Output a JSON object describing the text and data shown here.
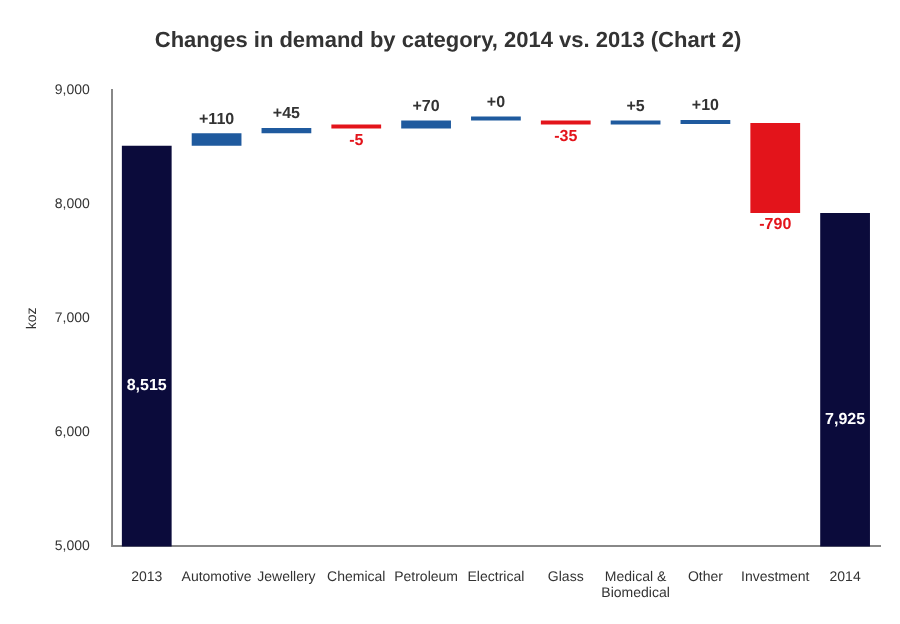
{
  "chart_data": {
    "type": "bar",
    "title": "Changes in demand by category, 2014 vs. 2013 (Chart 2)",
    "ylabel": "koz",
    "categories": [
      "2013",
      "Automotive",
      "Jewellery",
      "Chemical",
      "Petroleum",
      "Electrical",
      "Glass",
      "Medical & Biomedical",
      "Other",
      "Investment",
      "2014"
    ],
    "values": [
      8515,
      110,
      45,
      -5,
      70,
      0,
      -35,
      5,
      10,
      -790,
      7925
    ],
    "base": [
      null,
      8515,
      8625,
      8670,
      8665,
      8735,
      8735,
      8700,
      8705,
      8715,
      null
    ],
    "colors": [
      "#0b0b3b",
      "#1f5a9e",
      "#1f5a9e",
      "#e3141b",
      "#1f5a9e",
      "#1f5a9e",
      "#e3141b",
      "#1f5a9e",
      "#1f5a9e",
      "#e3141b",
      "#0b0b3b"
    ],
    "value_labels": [
      "8,515",
      "+110",
      "+45",
      "-5",
      "+70",
      "+0",
      "-35",
      "+5",
      "+10",
      "-790",
      "7,925"
    ],
    "ylim": [
      5000,
      9000
    ],
    "yticks": [
      {
        "value": 5000,
        "label": "5,000"
      },
      {
        "value": 6000,
        "label": "6,000"
      },
      {
        "value": 7000,
        "label": "7,000"
      },
      {
        "value": 8000,
        "label": "8,000"
      },
      {
        "value": 9000,
        "label": "9,000"
      }
    ],
    "grid": false,
    "legend": false
  }
}
